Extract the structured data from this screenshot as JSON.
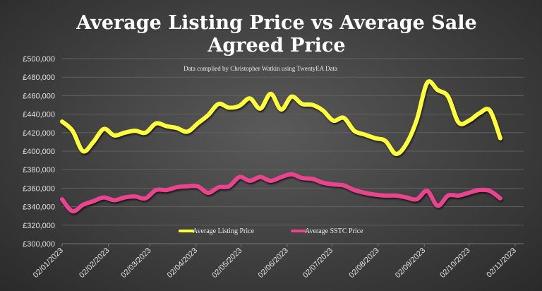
{
  "chart_data": {
    "type": "line",
    "title": "Average Listing Price vs Average Sale Agreed Price",
    "title_lines": [
      "Average Listing Price vs Average Sale",
      "Agreed Price"
    ],
    "subtitle": "Data complied by Christopher Watkin using TwentyEA Data",
    "ylim": [
      300000,
      500000
    ],
    "y_ticks": [
      "£300,000",
      "£320,000",
      "£340,000",
      "£360,000",
      "£380,000",
      "£400,000",
      "£420,000",
      "£440,000",
      "£460,000",
      "£480,000",
      "£500,000"
    ],
    "x_ticks": [
      "02/01/2023",
      "02/02/2023",
      "02/03/2023",
      "02/04/2023",
      "02/05/2023",
      "02/06/2023",
      "02/07/2023",
      "02/08/2023",
      "02/09/2023",
      "02/10/2023",
      "02/11/2023"
    ],
    "xlim": [
      "2023-01-02",
      "2023-11-02"
    ],
    "grid": true,
    "legend": "bottom",
    "x": [
      "2023-01-02",
      "2023-01-09",
      "2023-01-16",
      "2023-01-23",
      "2023-01-30",
      "2023-02-06",
      "2023-02-13",
      "2023-02-20",
      "2023-02-27",
      "2023-03-06",
      "2023-03-13",
      "2023-03-20",
      "2023-03-27",
      "2023-04-03",
      "2023-04-10",
      "2023-04-17",
      "2023-04-24",
      "2023-05-01",
      "2023-05-08",
      "2023-05-15",
      "2023-05-22",
      "2023-05-29",
      "2023-06-05",
      "2023-06-12",
      "2023-06-19",
      "2023-06-26",
      "2023-07-03",
      "2023-07-10",
      "2023-07-17",
      "2023-07-24",
      "2023-07-31",
      "2023-08-07",
      "2023-08-14",
      "2023-08-21",
      "2023-08-28",
      "2023-09-04",
      "2023-09-11",
      "2023-09-18",
      "2023-09-25",
      "2023-10-02",
      "2023-10-09",
      "2023-10-16",
      "2023-10-23"
    ],
    "series": [
      {
        "name": "Average Listing Price",
        "color": "#ffff3c",
        "values": [
          432000,
          422000,
          400000,
          410000,
          424000,
          417000,
          420000,
          422000,
          420000,
          430000,
          427000,
          425000,
          421000,
          430000,
          439000,
          451000,
          447000,
          449000,
          457000,
          446000,
          462000,
          445000,
          459000,
          451000,
          450000,
          444000,
          433000,
          436000,
          422000,
          418000,
          414000,
          411000,
          397000,
          408000,
          434000,
          474000,
          466000,
          459000,
          431000,
          433000,
          441000,
          444000,
          414000
        ]
      },
      {
        "name": "Average SSTC Price",
        "color": "#e8448e",
        "values": [
          348000,
          335000,
          342000,
          346000,
          350000,
          347000,
          350000,
          351000,
          349000,
          358000,
          358000,
          361000,
          362000,
          362000,
          355000,
          361000,
          362000,
          372000,
          368000,
          372000,
          368000,
          372000,
          375000,
          371000,
          370000,
          366000,
          364000,
          363000,
          358000,
          355000,
          353000,
          352000,
          352000,
          350000,
          348000,
          357000,
          341000,
          352000,
          352000,
          355000,
          358000,
          357000,
          349000
        ]
      }
    ]
  }
}
